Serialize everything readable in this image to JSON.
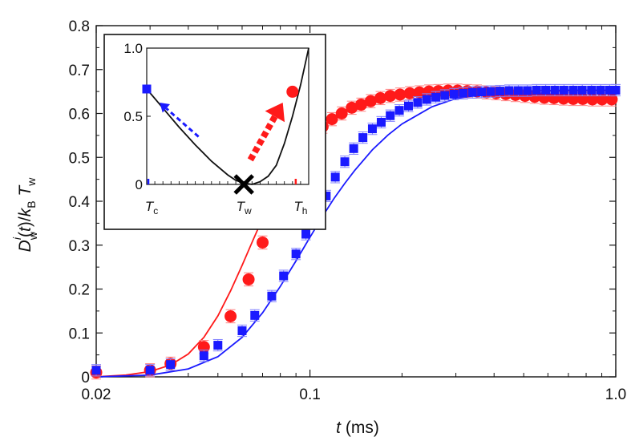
{
  "chart_data": {
    "type": "scatter",
    "x_scale": "log",
    "xlim": [
      0.02,
      1.0
    ],
    "ylim": [
      0,
      0.8
    ],
    "xticks": [
      0.02,
      0.1,
      1.0
    ],
    "xtick_labels": [
      "0.02",
      "0.1",
      "1.0"
    ],
    "yticks": [
      0,
      0.1,
      0.2,
      0.3,
      0.4,
      0.5,
      0.6,
      0.7,
      0.8
    ],
    "ytick_labels": [
      "0",
      "0.1",
      "0.2",
      "0.3",
      "0.4",
      "0.5",
      "0.6",
      "0.7",
      "0.8"
    ],
    "xlabel": "t (ms)",
    "ylabel": "D_w^i(t)/k_B T_w",
    "grid": false,
    "series": [
      {
        "marker": "circle",
        "color": "#ff1a1a",
        "x": [
          0.02,
          0.03,
          0.035,
          0.045,
          0.055,
          0.063,
          0.07,
          0.076,
          0.082,
          0.088,
          0.095,
          0.102,
          0.11,
          0.118,
          0.127,
          0.137,
          0.147,
          0.158,
          0.17,
          0.183,
          0.197,
          0.212,
          0.228,
          0.245,
          0.263,
          0.283,
          0.304,
          0.327,
          0.352,
          0.378,
          0.406,
          0.437,
          0.47,
          0.505,
          0.543,
          0.584,
          0.628,
          0.675,
          0.726,
          0.78,
          0.839,
          0.902,
          0.97
        ],
        "y": [
          0.01,
          0.015,
          0.03,
          0.068,
          0.138,
          0.222,
          0.306,
          0.372,
          0.437,
          0.495,
          0.525,
          0.548,
          0.57,
          0.587,
          0.6,
          0.613,
          0.62,
          0.628,
          0.635,
          0.64,
          0.643,
          0.646,
          0.648,
          0.65,
          0.651,
          0.652,
          0.652,
          0.651,
          0.65,
          0.648,
          0.646,
          0.644,
          0.642,
          0.64,
          0.638,
          0.636,
          0.635,
          0.634,
          0.633,
          0.633,
          0.632,
          0.632,
          0.632
        ],
        "yerr": 0.015
      },
      {
        "marker": "square",
        "color": "#1a1aff",
        "x": [
          0.02,
          0.03,
          0.035,
          0.045,
          0.05,
          0.06,
          0.066,
          0.075,
          0.082,
          0.09,
          0.097,
          0.106,
          0.113,
          0.121,
          0.13,
          0.139,
          0.149,
          0.16,
          0.171,
          0.183,
          0.196,
          0.21,
          0.225,
          0.241,
          0.258,
          0.276,
          0.296,
          0.317,
          0.34,
          0.364,
          0.39,
          0.418,
          0.448,
          0.48,
          0.514,
          0.551,
          0.59,
          0.632,
          0.677,
          0.726,
          0.777,
          0.833,
          0.892,
          0.955,
          1.0
        ],
        "y": [
          0.015,
          0.015,
          0.028,
          0.048,
          0.072,
          0.105,
          0.14,
          0.184,
          0.23,
          0.28,
          0.325,
          0.372,
          0.412,
          0.455,
          0.49,
          0.52,
          0.545,
          0.565,
          0.58,
          0.595,
          0.607,
          0.617,
          0.625,
          0.632,
          0.637,
          0.641,
          0.644,
          0.646,
          0.648,
          0.649,
          0.65,
          0.651,
          0.652,
          0.652,
          0.652,
          0.653,
          0.653,
          0.653,
          0.653,
          0.653,
          0.653,
          0.653,
          0.653,
          0.653,
          0.653
        ],
        "yerr": 0.013
      }
    ],
    "fits": [
      {
        "color": "#ff1a1a",
        "x": [
          0.02,
          0.025,
          0.03,
          0.035,
          0.04,
          0.045,
          0.05,
          0.055,
          0.06,
          0.065,
          0.07,
          0.075,
          0.08,
          0.09,
          0.1,
          0.11,
          0.12,
          0.14,
          0.16,
          0.18,
          0.2,
          0.25,
          0.3,
          0.4,
          0.5,
          0.7,
          1.0
        ],
        "y": [
          0.0,
          0.004,
          0.012,
          0.027,
          0.052,
          0.09,
          0.139,
          0.196,
          0.254,
          0.31,
          0.361,
          0.405,
          0.443,
          0.501,
          0.542,
          0.571,
          0.592,
          0.618,
          0.632,
          0.64,
          0.645,
          0.65,
          0.651,
          0.652,
          0.652,
          0.652,
          0.652
        ]
      },
      {
        "color": "#1a1aff",
        "x": [
          0.02,
          0.03,
          0.04,
          0.05,
          0.06,
          0.07,
          0.08,
          0.09,
          0.1,
          0.11,
          0.12,
          0.13,
          0.14,
          0.16,
          0.18,
          0.2,
          0.25,
          0.3,
          0.4,
          0.5,
          0.7,
          1.0
        ],
        "y": [
          0.0,
          0.004,
          0.018,
          0.046,
          0.09,
          0.146,
          0.206,
          0.264,
          0.318,
          0.366,
          0.407,
          0.441,
          0.47,
          0.517,
          0.551,
          0.576,
          0.615,
          0.634,
          0.647,
          0.651,
          0.653,
          0.653
        ]
      }
    ],
    "inset": {
      "xtick_labels": [
        {
          "main": "T",
          "sub": "c"
        },
        {
          "main": "T",
          "sub": "w"
        },
        {
          "main": "T",
          "sub": "h"
        }
      ],
      "ytick_labels": [
        "0",
        "0.5",
        "1.0"
      ],
      "ylim": [
        0,
        1.0
      ],
      "curve_x": [
        0.0,
        0.1,
        0.2,
        0.3,
        0.4,
        0.5,
        0.55,
        0.6,
        0.65,
        0.7,
        0.75,
        0.8,
        0.85,
        0.9,
        0.95,
        1.0
      ],
      "curve_y": [
        0.7,
        0.56,
        0.42,
        0.29,
        0.17,
        0.07,
        0.03,
        0.01,
        0.0,
        0.02,
        0.06,
        0.14,
        0.3,
        0.5,
        0.73,
        1.0
      ],
      "points": [
        {
          "x": 0.0,
          "y": 0.7,
          "marker": "square",
          "color": "#1a1aff"
        },
        {
          "x": 0.9,
          "y": 0.68,
          "marker": "circle",
          "color": "#ff1a1a"
        },
        {
          "x": 0.6,
          "y": 0.0,
          "marker": "cross",
          "color": "#000000"
        }
      ],
      "arrows": [
        {
          "color": "#1a1aff",
          "style": "dashed",
          "from": [
            0.32,
            0.35
          ],
          "to": [
            0.08,
            0.6
          ]
        },
        {
          "color": "#ff1a1a",
          "style": "thick-dashed",
          "from": [
            0.64,
            0.18
          ],
          "to": [
            0.84,
            0.6
          ]
        }
      ],
      "ticks": [
        {
          "x": 0.01,
          "color": "#1a1aff"
        },
        {
          "x": 0.92,
          "color": "#ff1a1a"
        }
      ]
    }
  }
}
